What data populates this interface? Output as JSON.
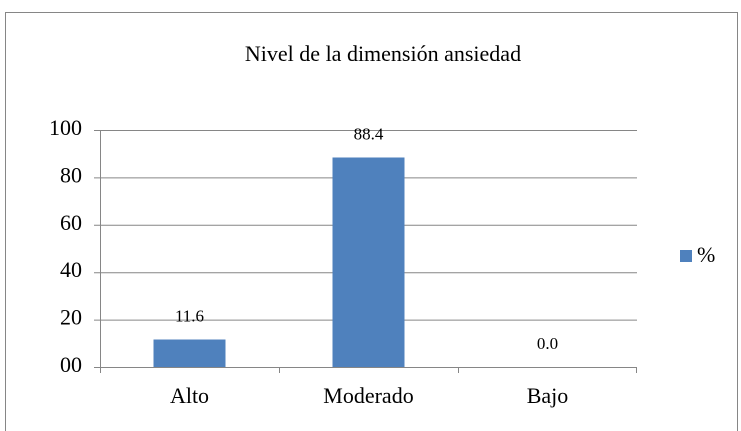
{
  "chart_data": {
    "type": "bar",
    "title": "Nivel de la dimensión ansiedad",
    "categories": [
      "Alto",
      "Moderado",
      "Bajo"
    ],
    "series": [
      {
        "name": "%",
        "color": "#4f81bd",
        "values": [
          11.6,
          88.4,
          0.0
        ],
        "value_labels": [
          "11.6",
          "88.4",
          "0.0"
        ]
      }
    ],
    "ylim": [
      0,
      100
    ],
    "yticks": [
      {
        "value": 0,
        "label": "00"
      },
      20,
      40,
      60,
      80,
      100
    ],
    "grid": true,
    "legend": "right"
  }
}
